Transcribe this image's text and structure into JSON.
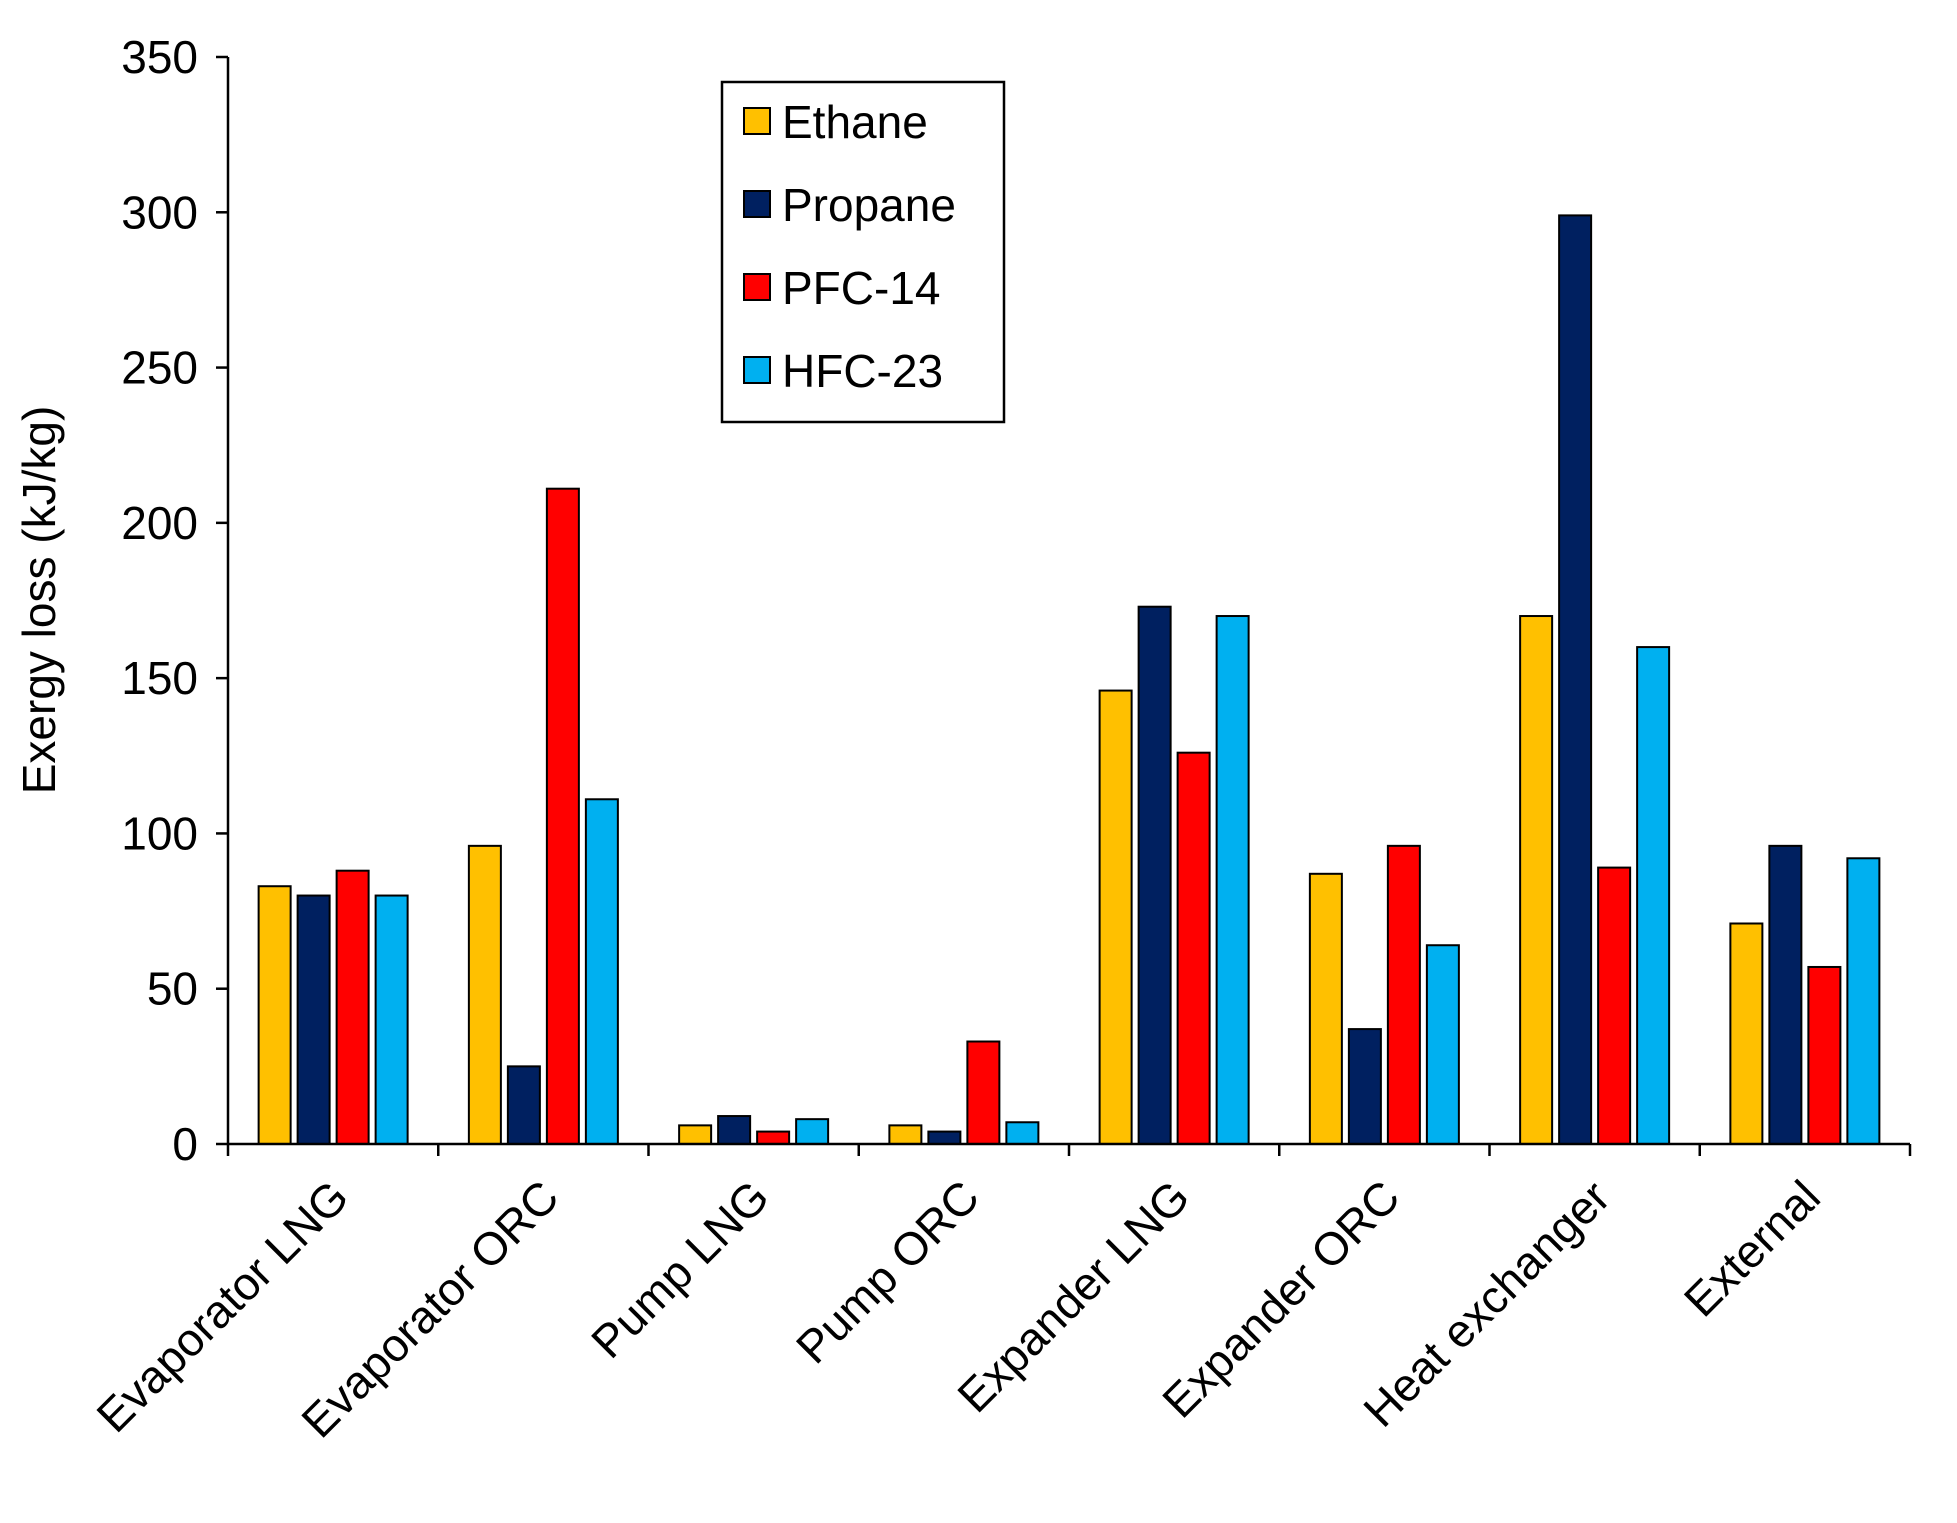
{
  "chart_data": {
    "type": "bar",
    "title": "",
    "xlabel": "",
    "ylabel": "Exergy loss (kJ/kg)",
    "ylim": [
      0,
      350
    ],
    "yticks": [
      0,
      50,
      100,
      150,
      200,
      250,
      300,
      350
    ],
    "grid": false,
    "legend_position": "top-center",
    "categories": [
      "Evaporator LNG",
      "Evaporator ORC",
      "Pump LNG",
      "Pump ORC",
      "Expander LNG",
      "Expander ORC",
      "Heat exchanger",
      "External"
    ],
    "series": [
      {
        "name": "Ethane",
        "color": "#FFC000",
        "values": [
          83,
          96,
          6,
          6,
          146,
          87,
          170,
          71
        ]
      },
      {
        "name": "Propane",
        "color": "#002060",
        "values": [
          80,
          25,
          9,
          4,
          173,
          37,
          299,
          96
        ]
      },
      {
        "name": "PFC-14",
        "color": "#FF0000",
        "values": [
          88,
          211,
          4,
          33,
          126,
          96,
          89,
          57
        ]
      },
      {
        "name": "HFC-23",
        "color": "#00B0F0",
        "values": [
          80,
          111,
          8,
          7,
          170,
          64,
          160,
          92
        ]
      }
    ]
  }
}
